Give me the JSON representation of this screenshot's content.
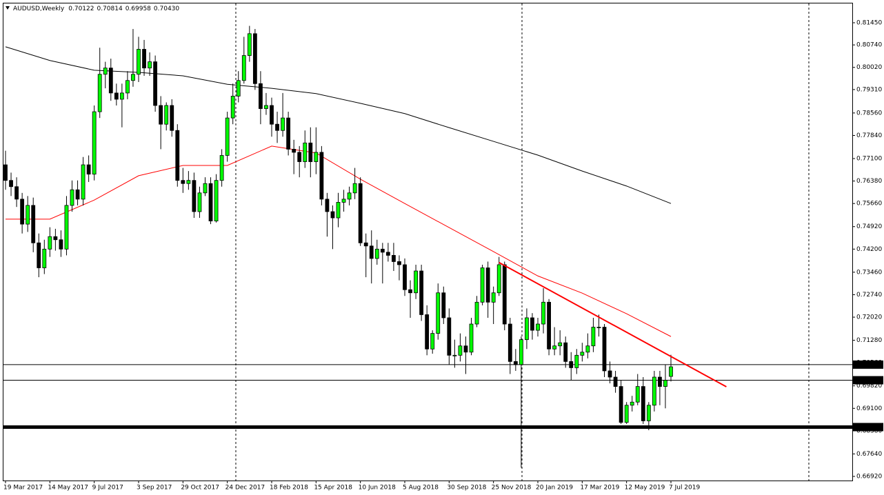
{
  "header": {
    "symbol": "AUDUSD,Weekly",
    "ohlc": [
      "0.70122",
      "0.70814",
      "0.69958",
      "0.70430"
    ]
  },
  "chart_data": {
    "type": "candlestick",
    "categories": [
      "19 Mar 2017",
      null,
      null,
      null,
      null,
      null,
      null,
      null,
      "14 May 2017",
      null,
      null,
      null,
      null,
      null,
      null,
      null,
      "9 Jul 2017",
      null,
      null,
      null,
      null,
      null,
      null,
      null,
      "3 Sep 2017",
      null,
      null,
      null,
      null,
      null,
      null,
      null,
      "29 Oct 2017",
      null,
      null,
      null,
      null,
      null,
      null,
      null,
      "24 Dec 2017",
      null,
      null,
      null,
      null,
      null,
      null,
      null,
      "18 Feb 2018",
      null,
      null,
      null,
      null,
      null,
      null,
      null,
      "15 Apr 2018",
      null,
      null,
      null,
      null,
      null,
      null,
      null,
      "10 Jun 2018",
      null,
      null,
      null,
      null,
      null,
      null,
      null,
      "5 Aug 2018",
      null,
      null,
      null,
      null,
      null,
      null,
      null,
      "30 Sep 2018",
      null,
      null,
      null,
      null,
      null,
      null,
      null,
      "25 Nov 2018",
      null,
      null,
      null,
      null,
      null,
      null,
      null,
      "20 Jan 2019",
      null,
      null,
      null,
      null,
      null,
      null,
      null,
      "17 Mar 2019",
      null,
      null,
      null,
      null,
      null,
      null,
      null,
      "12 May 2019",
      null,
      null,
      null,
      null,
      null,
      null,
      null,
      "7 Jul 2019"
    ],
    "open": [
      0.769,
      0.764,
      0.762,
      0.758,
      0.75,
      0.756,
      0.744,
      0.736,
      0.742,
      0.746,
      0.745,
      0.742,
      0.756,
      0.761,
      0.758,
      0.769,
      0.766,
      0.786,
      0.798,
      0.8,
      0.792,
      0.79,
      0.792,
      0.796,
      0.798,
      0.806,
      0.8,
      0.802,
      0.788,
      0.782,
      0.788,
      0.78,
      0.764,
      0.763,
      0.764,
      0.754,
      0.76,
      0.763,
      0.751,
      0.764,
      0.772,
      0.784,
      0.791,
      0.796,
      0.804,
      0.811,
      0.795,
      0.787,
      0.788,
      0.782,
      0.78,
      0.784,
      0.774,
      0.773,
      0.77,
      0.776,
      0.77,
      0.773,
      0.758,
      0.754,
      0.752,
      0.757,
      0.758,
      0.76,
      0.763,
      0.744,
      0.743,
      0.739,
      0.742,
      0.741,
      0.74,
      0.738,
      0.737,
      0.729,
      0.728,
      0.735,
      0.721,
      0.71,
      0.715,
      0.728,
      0.72,
      0.708,
      0.708,
      0.711,
      0.709,
      0.718,
      0.725,
      0.736,
      0.725,
      0.728,
      0.737,
      0.718,
      0.706,
      0.705,
      0.713,
      0.72,
      0.716,
      0.718,
      0.725,
      0.71,
      0.711,
      0.712,
      0.706,
      0.704,
      0.708,
      0.709,
      0.711,
      0.717,
      0.717,
      0.703,
      0.701,
      0.698,
      0.6865,
      0.692,
      0.693,
      0.698,
      0.687,
      0.692,
      0.701,
      0.698,
      0.70122
    ],
    "high": [
      0.7735,
      0.7665,
      0.765,
      0.76,
      0.759,
      0.7585,
      0.747,
      0.745,
      0.749,
      0.7485,
      0.748,
      0.759,
      0.764,
      0.764,
      0.7715,
      0.772,
      0.788,
      0.8065,
      0.802,
      0.803,
      0.795,
      0.795,
      0.799,
      0.8125,
      0.81,
      0.809,
      0.805,
      0.804,
      0.791,
      0.789,
      0.79,
      0.782,
      0.768,
      0.767,
      0.7665,
      0.762,
      0.765,
      0.765,
      0.766,
      0.774,
      0.786,
      0.795,
      0.799,
      0.81,
      0.8135,
      0.8125,
      0.799,
      0.792,
      0.7905,
      0.786,
      0.792,
      0.786,
      0.777,
      0.775,
      0.78,
      0.781,
      0.781,
      0.775,
      0.76,
      0.756,
      0.76,
      0.761,
      0.762,
      0.768,
      0.765,
      0.747,
      0.748,
      0.745,
      0.744,
      0.744,
      0.744,
      0.74,
      0.739,
      0.732,
      0.737,
      0.737,
      0.724,
      0.716,
      0.731,
      0.73,
      0.723,
      0.713,
      0.715,
      0.714,
      0.72,
      0.727,
      0.737,
      0.738,
      0.73,
      0.7395,
      0.738,
      0.72,
      0.71,
      0.714,
      0.723,
      0.7215,
      0.72,
      0.7295,
      0.726,
      0.717,
      0.716,
      0.714,
      0.709,
      0.71,
      0.712,
      0.715,
      0.72,
      0.721,
      0.718,
      0.706,
      0.703,
      0.7,
      0.693,
      0.695,
      0.702,
      0.701,
      0.693,
      0.703,
      0.703,
      0.705,
      0.70814
    ],
    "low": [
      0.761,
      0.759,
      0.7555,
      0.747,
      0.7475,
      0.741,
      0.733,
      0.734,
      0.7395,
      0.7415,
      0.7395,
      0.74,
      0.754,
      0.756,
      0.756,
      0.7635,
      0.764,
      0.784,
      0.7935,
      0.7895,
      0.788,
      0.781,
      0.79,
      0.794,
      0.7955,
      0.7975,
      0.7975,
      0.786,
      0.774,
      0.78,
      0.778,
      0.762,
      0.76,
      0.761,
      0.752,
      0.752,
      0.759,
      0.75,
      0.7505,
      0.762,
      0.77,
      0.782,
      0.789,
      0.795,
      0.802,
      0.793,
      0.782,
      0.785,
      0.778,
      0.776,
      0.778,
      0.772,
      0.766,
      0.765,
      0.768,
      0.765,
      0.766,
      0.756,
      0.746,
      0.742,
      0.749,
      0.754,
      0.756,
      0.758,
      0.743,
      0.733,
      0.731,
      0.737,
      0.731,
      0.738,
      0.735,
      0.732,
      0.727,
      0.72,
      0.726,
      0.719,
      0.708,
      0.7085,
      0.713,
      0.718,
      0.705,
      0.704,
      0.706,
      0.702,
      0.708,
      0.717,
      0.724,
      0.72,
      0.718,
      0.727,
      0.716,
      0.702,
      0.703,
      0.672,
      0.71,
      0.713,
      0.714,
      0.715,
      0.708,
      0.708,
      0.708,
      0.704,
      0.7,
      0.702,
      0.706,
      0.707,
      0.709,
      0.714,
      0.701,
      0.699,
      0.696,
      0.686,
      0.686,
      0.69,
      0.692,
      0.686,
      0.684,
      0.69,
      0.692,
      0.691,
      0.69958
    ],
    "close": [
      0.764,
      0.762,
      0.758,
      0.75,
      0.756,
      0.744,
      0.736,
      0.742,
      0.746,
      0.745,
      0.742,
      0.756,
      0.761,
      0.758,
      0.769,
      0.766,
      0.786,
      0.798,
      0.8,
      0.792,
      0.79,
      0.792,
      0.796,
      0.798,
      0.806,
      0.8,
      0.802,
      0.788,
      0.782,
      0.788,
      0.78,
      0.764,
      0.763,
      0.764,
      0.754,
      0.76,
      0.763,
      0.751,
      0.764,
      0.772,
      0.784,
      0.791,
      0.796,
      0.804,
      0.811,
      0.795,
      0.787,
      0.788,
      0.782,
      0.78,
      0.784,
      0.774,
      0.773,
      0.77,
      0.776,
      0.77,
      0.773,
      0.758,
      0.754,
      0.752,
      0.757,
      0.758,
      0.76,
      0.763,
      0.744,
      0.743,
      0.739,
      0.742,
      0.741,
      0.74,
      0.738,
      0.737,
      0.729,
      0.728,
      0.735,
      0.721,
      0.71,
      0.715,
      0.728,
      0.72,
      0.708,
      0.708,
      0.711,
      0.709,
      0.718,
      0.725,
      0.736,
      0.725,
      0.728,
      0.737,
      0.718,
      0.706,
      0.705,
      0.713,
      0.72,
      0.716,
      0.718,
      0.725,
      0.71,
      0.711,
      0.712,
      0.706,
      0.704,
      0.708,
      0.709,
      0.711,
      0.717,
      0.717,
      0.703,
      0.701,
      0.698,
      0.6865,
      0.692,
      0.693,
      0.698,
      0.687,
      0.692,
      0.701,
      0.698,
      0.7,
      0.7043
    ],
    "up_color": "#00ff00",
    "down_color": "#000000",
    "series": [
      {
        "color": "#ff0000",
        "x": [
          "19 Mar 2017",
          "14 May 2017",
          "9 Jul 2017",
          "3 Sep 2017",
          "29 Oct 2017",
          "24 Dec 2017",
          "18 Feb 2018",
          "15 Apr 2018",
          "10 Jun 2018",
          "5 Aug 2018",
          "30 Sep 2018",
          "25 Nov 2018",
          "20 Jan 2019",
          "17 Mar 2019",
          "12 May 2019",
          "7 Jul 2019"
        ],
        "values": [
          0.7516,
          0.7516,
          0.7577,
          0.7655,
          0.7688,
          0.7688,
          0.775,
          0.7728,
          0.7644,
          0.7566,
          0.7489,
          0.7412,
          0.7334,
          0.7279,
          0.7213,
          0.714
        ]
      },
      {
        "color": "#000000",
        "x": [
          "19 Mar 2017",
          "14 May 2017",
          "9 Jul 2017",
          "3 Sep 2017",
          "29 Oct 2017",
          "24 Dec 2017",
          "18 Feb 2018",
          "15 Apr 2018",
          "10 Jun 2018",
          "5 Aug 2018",
          "30 Sep 2018",
          "25 Nov 2018",
          "20 Jan 2019",
          "17 Mar 2019",
          "12 May 2019",
          "7 Jul 2019"
        ],
        "values": [
          0.8068,
          0.8024,
          0.7993,
          0.7986,
          0.7975,
          0.7948,
          0.7935,
          0.7918,
          0.7887,
          0.7854,
          0.7809,
          0.7765,
          0.7721,
          0.767,
          0.7622,
          0.7566
        ]
      }
    ],
    "trendline": {
      "color": "#ff0000",
      "x": [
        89,
        130
      ],
      "values": [
        0.7377,
        0.6979
      ]
    },
    "hlines": [
      {
        "value": 0.705,
        "label": "0.70500",
        "width": 1
      },
      {
        "value": 0.7,
        "label": "0.70000",
        "width": 1
      },
      {
        "value": 0.685,
        "label": "0.68500",
        "width": 5
      }
    ],
    "ylim": [
      0.66788,
      0.82068
    ],
    "yticks": [
      {
        "value": 0.8145,
        "label": "0.81450"
      },
      {
        "value": 0.8074,
        "label": "0.80740"
      },
      {
        "value": 0.8002,
        "label": "0.80020"
      },
      {
        "value": 0.7931,
        "label": "0.79310"
      },
      {
        "value": 0.7856,
        "label": "0.78560"
      },
      {
        "value": 0.7784,
        "label": "0.77840"
      },
      {
        "value": 0.771,
        "label": "0.77100"
      },
      {
        "value": 0.7638,
        "label": "0.76380"
      },
      {
        "value": 0.7566,
        "label": "0.75660"
      },
      {
        "value": 0.7492,
        "label": "0.74920"
      },
      {
        "value": 0.742,
        "label": "0.74200"
      },
      {
        "value": 0.7346,
        "label": "0.73460"
      },
      {
        "value": 0.7274,
        "label": "0.72740"
      },
      {
        "value": 0.7202,
        "label": "0.72020"
      },
      {
        "value": 0.7128,
        "label": "0.71280"
      },
      {
        "value": 0.7056,
        "label": "0.70560"
      },
      {
        "value": 0.6982,
        "label": "0.69820"
      },
      {
        "value": 0.691,
        "label": "0.69100"
      },
      {
        "value": 0.6838,
        "label": "0.68380"
      },
      {
        "value": 0.6764,
        "label": "0.67640"
      },
      {
        "value": 0.6692,
        "label": "0.66920"
      }
    ]
  }
}
